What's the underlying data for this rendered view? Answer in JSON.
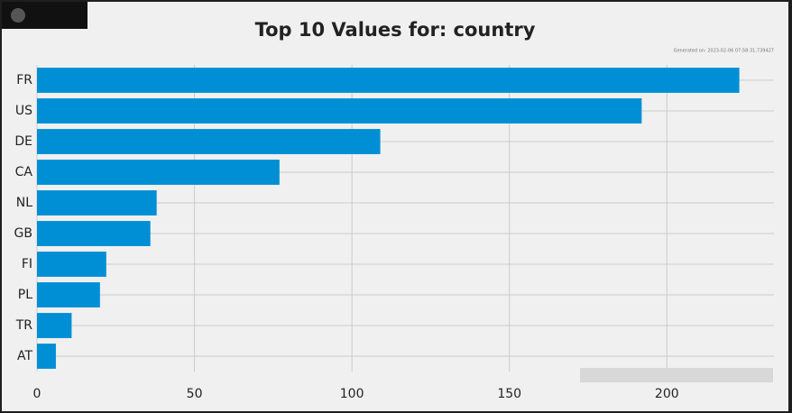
{
  "chart_data": {
    "type": "barh",
    "title": "Top 10 Values for: country",
    "subtitle": "Generated on: 2023-02-06 07:58:31.739427",
    "categories": [
      "FR",
      "US",
      "DE",
      "CA",
      "NL",
      "GB",
      "FI",
      "PL",
      "TR",
      "AT"
    ],
    "values": [
      223,
      192,
      109,
      77,
      38,
      36,
      22,
      20,
      11,
      6
    ],
    "color": "#008fd5",
    "xlim": [
      0,
      234
    ],
    "xticks": [
      0,
      50,
      100,
      150,
      200
    ],
    "grid": true
  }
}
